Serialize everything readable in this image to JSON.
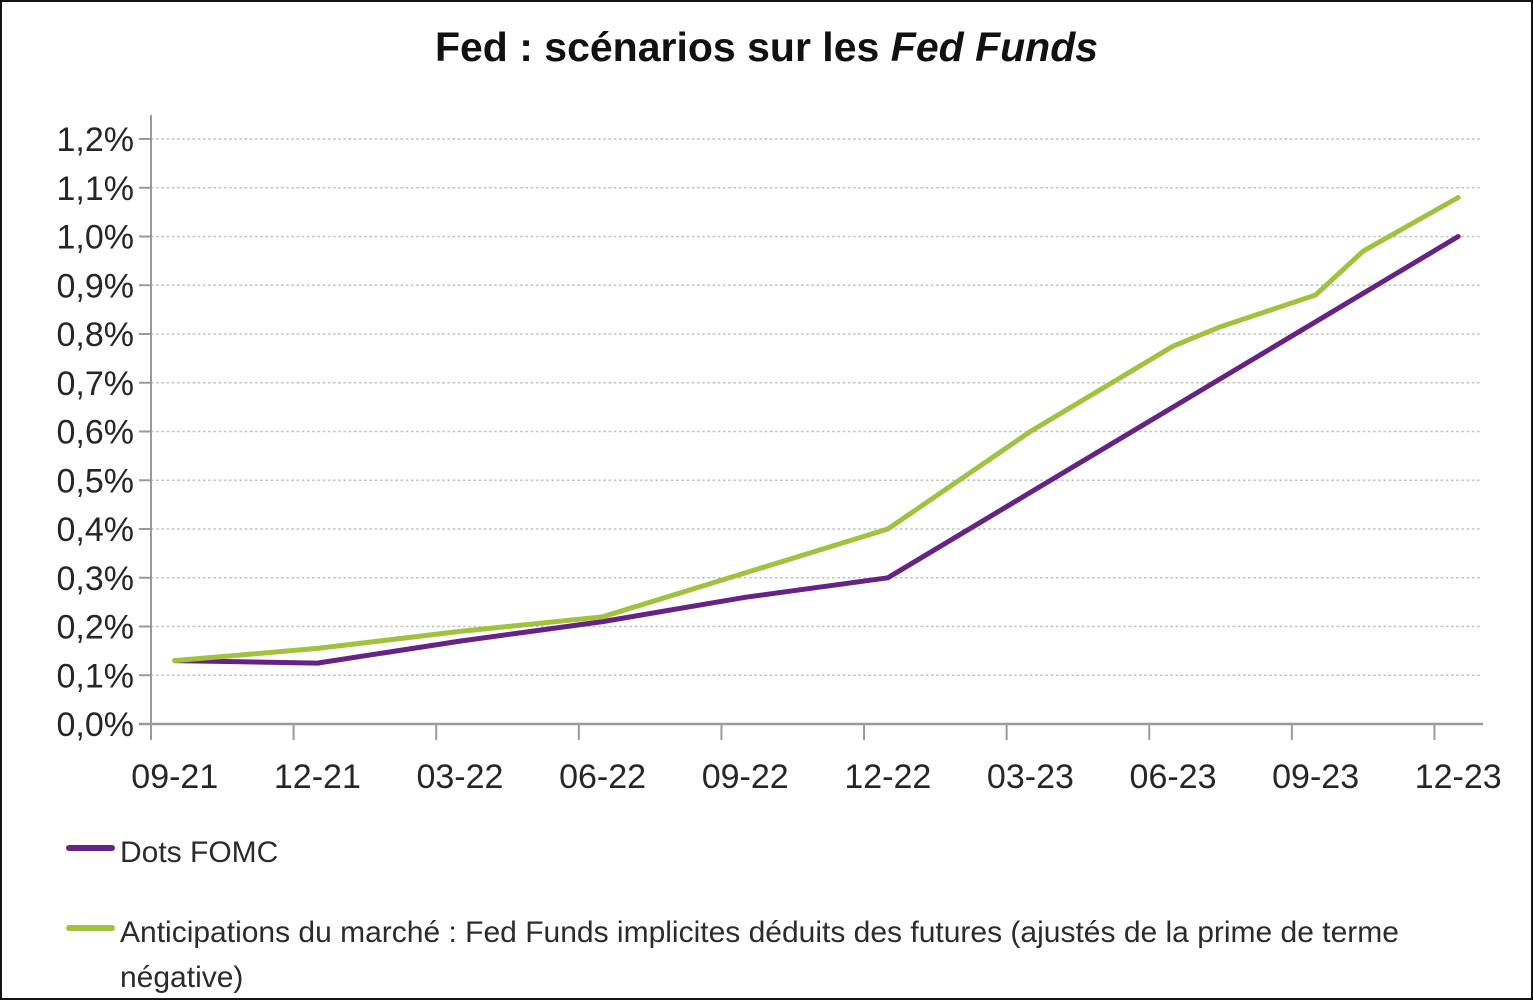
{
  "title": {
    "main": "Fed : scénarios sur les",
    "italic": "Fed Funds"
  },
  "chart_data": {
    "type": "line",
    "title": "Fed : scénarios sur les Fed Funds",
    "xlabel": "",
    "ylabel": "",
    "unit": "percent",
    "decimal_style": "french-comma",
    "ylim": [
      0.0,
      1.2
    ],
    "y_tick_step": 0.1,
    "y_tick_labels": [
      "0,0%",
      "0,1%",
      "0,2%",
      "0,3%",
      "0,4%",
      "0,5%",
      "0,6%",
      "0,7%",
      "0,8%",
      "0,9%",
      "1,0%",
      "1,1%",
      "1,2%"
    ],
    "x_tick_labels": [
      "09-21",
      "12-21",
      "03-22",
      "06-22",
      "09-22",
      "12-22",
      "03-23",
      "06-23",
      "09-23",
      "12-23"
    ],
    "x_domain_months": 28,
    "x_first_month": "09-21",
    "x_last_month": "12-23",
    "grid": "horizontal-dashed",
    "legend_position": "below-left",
    "axis_color": "#9a9a9a",
    "gridline_color": "#c2c2c2",
    "series": [
      {
        "name": "Dots FOMC",
        "color": "#662287",
        "points": [
          {
            "date": "09-21",
            "month_index": 0,
            "value_pct": 0.13
          },
          {
            "date": "12-21",
            "month_index": 3,
            "value_pct": 0.125
          },
          {
            "date": "03-22",
            "month_index": 6,
            "value_pct": 0.17
          },
          {
            "date": "06-22",
            "month_index": 9,
            "value_pct": 0.21
          },
          {
            "date": "09-22",
            "month_index": 12,
            "value_pct": 0.26
          },
          {
            "date": "12-22",
            "month_index": 15,
            "value_pct": 0.3
          },
          {
            "date": "03-23",
            "month_index": 18,
            "value_pct": 0.475
          },
          {
            "date": "06-23",
            "month_index": 21,
            "value_pct": 0.65
          },
          {
            "date": "09-23",
            "month_index": 24,
            "value_pct": 0.825
          },
          {
            "date": "12-23",
            "month_index": 27,
            "value_pct": 1.0
          }
        ]
      },
      {
        "name": "Anticipations du marché : Fed Funds implicites déduits des futures (ajustés de la prime de terme négative)",
        "color": "#A1C23E",
        "points": [
          {
            "date": "09-21",
            "month_index": 0,
            "value_pct": 0.13
          },
          {
            "date": "12-21",
            "month_index": 3,
            "value_pct": 0.155
          },
          {
            "date": "03-22",
            "month_index": 6,
            "value_pct": 0.19
          },
          {
            "date": "06-22",
            "month_index": 9,
            "value_pct": 0.22
          },
          {
            "date": "09-22",
            "month_index": 12,
            "value_pct": 0.31
          },
          {
            "date": "12-22",
            "month_index": 15,
            "value_pct": 0.4
          },
          {
            "date": "03-23",
            "month_index": 18,
            "value_pct": 0.6
          },
          {
            "date": "06-23",
            "month_index": 21,
            "value_pct": 0.775
          },
          {
            "date": "07-23",
            "month_index": 22,
            "value_pct": 0.815
          },
          {
            "date": "09-23",
            "month_index": 24,
            "value_pct": 0.88
          },
          {
            "date": "10-23",
            "month_index": 25,
            "value_pct": 0.97
          },
          {
            "date": "12-23",
            "month_index": 27,
            "value_pct": 1.08
          }
        ]
      }
    ]
  }
}
